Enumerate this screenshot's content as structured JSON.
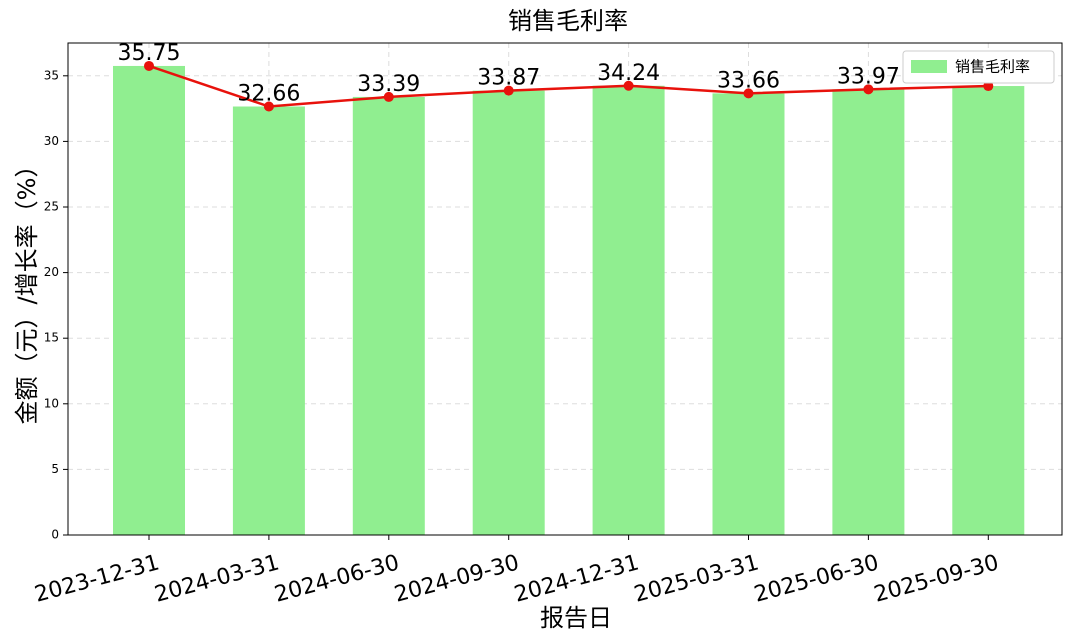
{
  "chart_data": {
    "type": "bar",
    "title": "销售毛利率",
    "x_label": "报告日",
    "y_label": "金额（元）/增长率（%）",
    "categories": [
      "2023-12-31",
      "2024-03-31",
      "2024-06-30",
      "2024-09-30",
      "2024-12-31",
      "2025-03-31",
      "2025-06-30",
      "2025-09-30"
    ],
    "series": [
      {
        "name": "销售毛利率",
        "color": "#90ee90",
        "values": [
          35.75,
          32.66,
          33.39,
          33.87,
          34.24,
          33.66,
          33.97,
          34.22
        ]
      }
    ],
    "line_color": "#e8120c",
    "ylim": [
      0,
      37.5
    ],
    "yticks": [
      0,
      5,
      10,
      15,
      20,
      25,
      30,
      35
    ],
    "grid": true,
    "legend": "upper right"
  }
}
